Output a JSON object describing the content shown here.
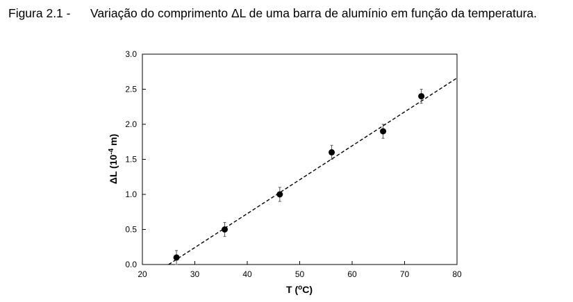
{
  "caption": {
    "label": "Figura 2.1 -",
    "text": "Variação do comprimento ΔL de uma barra de alumínio em função da temperatura."
  },
  "chart_data": {
    "type": "scatter",
    "title": "",
    "xlabel": "T (°C)",
    "xlabel_parts": [
      "T (",
      "o",
      "C)"
    ],
    "ylabel": "ΔL (10-4 m)",
    "ylabel_parts": [
      "ΔL (10",
      "-4",
      " m)"
    ],
    "xlim": [
      20,
      80
    ],
    "ylim": [
      0,
      3
    ],
    "x_ticks": [
      "20",
      "30",
      "40",
      "50",
      "60",
      "70",
      "80"
    ],
    "y_ticks": [
      "0.0",
      "0.5",
      "1.0",
      "1.5",
      "2.0",
      "2.5",
      "3.0"
    ],
    "grid": false,
    "legend": "none",
    "series": [
      {
        "x": [
          26.5,
          35.7,
          46.2,
          56.1,
          65.9,
          73.2
        ],
        "y": [
          0.1,
          0.5,
          1.0,
          1.6,
          1.9,
          2.4
        ],
        "y_error": [
          0.1,
          0.1,
          0.1,
          0.1,
          0.1,
          0.1
        ]
      }
    ],
    "fit_line": {
      "style": "dashed",
      "x": [
        25.0,
        80.0
      ],
      "y": [
        0.0,
        2.66
      ]
    },
    "colors": {
      "marker": "#000000",
      "fit_line": "#000000",
      "error_bar": "#555555"
    }
  }
}
